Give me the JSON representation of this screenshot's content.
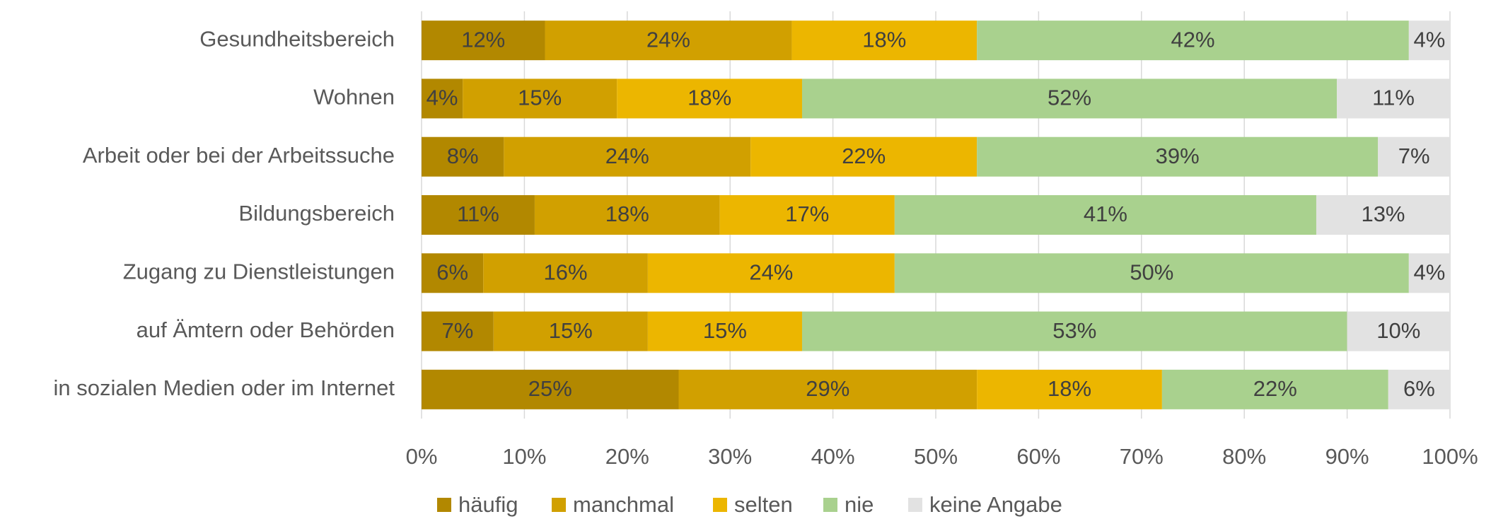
{
  "chart_data": {
    "type": "stacked_bar_horizontal",
    "categories": [
      "Gesundheitsbereich",
      "Wohnen",
      "Arbeit oder bei der Arbeitssuche",
      "Bildungsbereich",
      "Zugang zu Dienstleistungen",
      "auf Ämtern oder Behörden",
      "in sozialen Medien oder im Internet"
    ],
    "series": [
      {
        "name": "häufig",
        "color": "#b28800",
        "values": [
          12,
          4,
          8,
          11,
          6,
          7,
          25
        ],
        "value_labels": [
          "12%",
          "4%",
          "8%",
          "11%",
          "6%",
          "7%",
          "25%"
        ]
      },
      {
        "name": "manchmal",
        "color": "#d1a000",
        "values": [
          24,
          15,
          24,
          18,
          16,
          15,
          29
        ],
        "value_labels": [
          "24%",
          "15%",
          "24%",
          "18%",
          "16%",
          "15%",
          "29%"
        ]
      },
      {
        "name": "selten",
        "color": "#ecb600",
        "values": [
          18,
          18,
          22,
          17,
          24,
          15,
          18
        ],
        "value_labels": [
          "18%",
          "18%",
          "22%",
          "17%",
          "24%",
          "15%",
          "18%"
        ]
      },
      {
        "name": "nie",
        "color": "#a9d18e",
        "values": [
          42,
          52,
          39,
          41,
          50,
          53,
          22
        ],
        "value_labels": [
          "42%",
          "52%",
          "39%",
          "41%",
          "50%",
          "53%",
          "22%"
        ]
      },
      {
        "name": "keine Angabe",
        "color": "#e2e2e2",
        "values": [
          4,
          11,
          7,
          13,
          4,
          10,
          6
        ],
        "value_labels": [
          "4%",
          "11%",
          "7%",
          "13%",
          "4%",
          "10%",
          "6%"
        ]
      }
    ],
    "xlim": [
      0,
      100
    ],
    "xticks": [
      {
        "value": 0,
        "label": "0%"
      },
      {
        "value": 10,
        "label": "10%"
      },
      {
        "value": 20,
        "label": "20%"
      },
      {
        "value": 30,
        "label": "30%"
      },
      {
        "value": 40,
        "label": "40%"
      },
      {
        "value": 50,
        "label": "50%"
      },
      {
        "value": 60,
        "label": "60%"
      },
      {
        "value": 70,
        "label": "70%"
      },
      {
        "value": 80,
        "label": "80%"
      },
      {
        "value": 90,
        "label": "90%"
      },
      {
        "value": 100,
        "label": "100%"
      }
    ],
    "grid": true,
    "legend": "bottom"
  }
}
